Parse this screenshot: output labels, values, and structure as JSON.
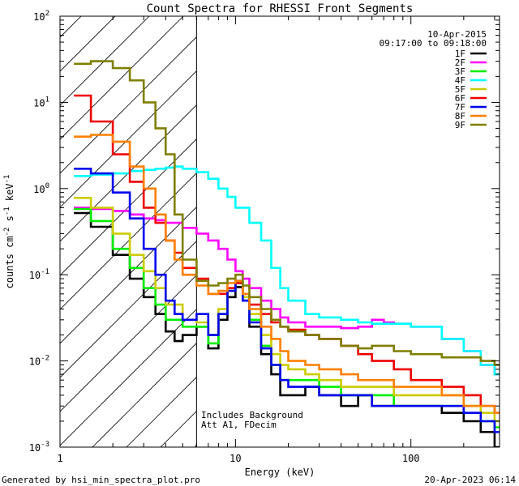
{
  "chart_data": {
    "type": "line",
    "title": "Count Spectra for RHESSI Front Segments",
    "xlabel": "Energy (keV)",
    "ylabel_parts": [
      "counts cm",
      "-2",
      " s",
      "-1",
      " keV",
      "-1"
    ],
    "xscale": "log",
    "yscale": "log",
    "xlim": [
      1,
      320
    ],
    "ylim": [
      0.001,
      100
    ],
    "x_ticks": [
      {
        "value": 1,
        "label": "1"
      },
      {
        "value": 10,
        "label": "10"
      },
      {
        "value": 100,
        "label": "100"
      }
    ],
    "y_ticks": [
      {
        "value": 0.001,
        "base": "10",
        "exp": "-3"
      },
      {
        "value": 0.01,
        "base": "10",
        "exp": "-2"
      },
      {
        "value": 0.1,
        "base": "10",
        "exp": "-1"
      },
      {
        "value": 1,
        "base": "10",
        "exp": "0"
      },
      {
        "value": 10,
        "base": "10",
        "exp": "1"
      },
      {
        "value": 100,
        "base": "10",
        "exp": "2"
      }
    ],
    "date": "10-Apr-2015",
    "time_range": "09:17:00 to 09:18:00",
    "shaded_region_xmax": 6,
    "annotations": [
      "Includes Background",
      "Att A1, FDecim"
    ],
    "legend_position": "top-right",
    "series": [
      {
        "name": "1F",
        "color": "#000000",
        "values": [
          [
            1.2,
            0.52
          ],
          [
            1.5,
            0.36
          ],
          [
            2,
            0.17
          ],
          [
            2.5,
            0.09
          ],
          [
            3,
            0.055
          ],
          [
            3.5,
            0.035
          ],
          [
            4,
            0.022
          ],
          [
            4.5,
            0.017
          ],
          [
            5,
            0.02
          ],
          [
            6,
            0.025
          ],
          [
            7,
            0.014
          ],
          [
            8,
            0.03
          ],
          [
            9,
            0.055
          ],
          [
            10,
            0.072
          ],
          [
            11,
            0.05
          ],
          [
            12,
            0.025
          ],
          [
            14,
            0.012
          ],
          [
            16,
            0.007
          ],
          [
            18,
            0.004
          ],
          [
            20,
            0.004
          ],
          [
            25,
            0.005
          ],
          [
            30,
            0.004
          ],
          [
            40,
            0.003
          ],
          [
            50,
            0.004
          ],
          [
            60,
            0.003
          ],
          [
            80,
            0.003
          ],
          [
            100,
            0.003
          ],
          [
            150,
            0.0025
          ],
          [
            200,
            0.002
          ],
          [
            250,
            0.0015
          ],
          [
            300,
            0.001
          ]
        ]
      },
      {
        "name": "2F",
        "color": "#ff00ff",
        "values": [
          [
            1.2,
            0.6
          ],
          [
            1.5,
            0.58
          ],
          [
            2,
            0.55
          ],
          [
            2.5,
            0.5
          ],
          [
            3,
            0.45
          ],
          [
            3.5,
            0.43
          ],
          [
            4,
            0.4
          ],
          [
            5,
            0.35
          ],
          [
            6,
            0.3
          ],
          [
            7,
            0.25
          ],
          [
            8,
            0.2
          ],
          [
            9,
            0.15
          ],
          [
            10,
            0.11
          ],
          [
            11,
            0.09
          ],
          [
            12,
            0.07
          ],
          [
            14,
            0.05
          ],
          [
            16,
            0.04
          ],
          [
            18,
            0.032
          ],
          [
            20,
            0.028
          ],
          [
            25,
            0.025
          ],
          [
            30,
            0.025
          ],
          [
            40,
            0.024
          ],
          [
            50,
            0.025
          ],
          [
            60,
            0.03
          ],
          [
            70,
            0.028
          ],
          [
            80,
            0.027
          ],
          [
            100,
            0.025
          ],
          [
            150,
            0.018
          ],
          [
            200,
            0.013
          ],
          [
            250,
            0.009
          ],
          [
            300,
            0.007
          ]
        ]
      },
      {
        "name": "3F",
        "color": "#00ee00",
        "values": [
          [
            1.2,
            0.58
          ],
          [
            1.5,
            0.42
          ],
          [
            2,
            0.2
          ],
          [
            2.5,
            0.12
          ],
          [
            3,
            0.07
          ],
          [
            3.5,
            0.045
          ],
          [
            4,
            0.03
          ],
          [
            5,
            0.025
          ],
          [
            6,
            0.025
          ],
          [
            7,
            0.016
          ],
          [
            8,
            0.035
          ],
          [
            9,
            0.065
          ],
          [
            10,
            0.08
          ],
          [
            11,
            0.05
          ],
          [
            12,
            0.03
          ],
          [
            14,
            0.015
          ],
          [
            16,
            0.009
          ],
          [
            18,
            0.006
          ],
          [
            20,
            0.006
          ],
          [
            25,
            0.006
          ],
          [
            30,
            0.005
          ],
          [
            40,
            0.004
          ],
          [
            50,
            0.004
          ],
          [
            60,
            0.004
          ],
          [
            80,
            0.003
          ],
          [
            100,
            0.003
          ],
          [
            150,
            0.003
          ],
          [
            200,
            0.003
          ],
          [
            250,
            0.002
          ],
          [
            300,
            0.0017
          ]
        ]
      },
      {
        "name": "4F",
        "color": "#00ffff",
        "values": [
          [
            1.2,
            1.4
          ],
          [
            1.5,
            1.45
          ],
          [
            2,
            1.5
          ],
          [
            2.5,
            1.6
          ],
          [
            3,
            1.65
          ],
          [
            3.5,
            1.7
          ],
          [
            4,
            1.75
          ],
          [
            4.5,
            1.8
          ],
          [
            5,
            1.7
          ],
          [
            6,
            1.55
          ],
          [
            7,
            1.3
          ],
          [
            8,
            1.0
          ],
          [
            9,
            0.8
          ],
          [
            10,
            0.6
          ],
          [
            12,
            0.4
          ],
          [
            14,
            0.25
          ],
          [
            16,
            0.12
          ],
          [
            18,
            0.07
          ],
          [
            20,
            0.05
          ],
          [
            25,
            0.035
          ],
          [
            30,
            0.032
          ],
          [
            40,
            0.03
          ],
          [
            50,
            0.028
          ],
          [
            60,
            0.027
          ],
          [
            80,
            0.027
          ],
          [
            100,
            0.025
          ],
          [
            150,
            0.018
          ],
          [
            200,
            0.013
          ],
          [
            250,
            0.009
          ],
          [
            300,
            0.007
          ]
        ]
      },
      {
        "name": "5F",
        "color": "#cccc00",
        "values": [
          [
            1.2,
            0.78
          ],
          [
            1.5,
            0.6
          ],
          [
            2,
            0.3
          ],
          [
            2.5,
            0.17
          ],
          [
            3,
            0.11
          ],
          [
            3.5,
            0.07
          ],
          [
            4,
            0.045
          ],
          [
            5,
            0.03
          ],
          [
            6,
            0.028
          ],
          [
            7,
            0.02
          ],
          [
            8,
            0.04
          ],
          [
            9,
            0.07
          ],
          [
            10,
            0.08
          ],
          [
            11,
            0.055
          ],
          [
            12,
            0.035
          ],
          [
            14,
            0.02
          ],
          [
            16,
            0.012
          ],
          [
            18,
            0.009
          ],
          [
            20,
            0.008
          ],
          [
            25,
            0.007
          ],
          [
            30,
            0.006
          ],
          [
            40,
            0.005
          ],
          [
            50,
            0.005
          ],
          [
            60,
            0.005
          ],
          [
            80,
            0.004
          ],
          [
            100,
            0.004
          ],
          [
            150,
            0.004
          ],
          [
            200,
            0.003
          ],
          [
            250,
            0.0025
          ],
          [
            300,
            0.002
          ]
        ]
      },
      {
        "name": "6F",
        "color": "#ee0000",
        "values": [
          [
            1.2,
            12
          ],
          [
            1.5,
            6
          ],
          [
            2,
            2.5
          ],
          [
            2.5,
            1.2
          ],
          [
            3,
            0.6
          ],
          [
            3.5,
            0.4
          ],
          [
            4,
            0.25
          ],
          [
            4.5,
            0.18
          ],
          [
            5,
            0.12
          ],
          [
            6,
            0.09
          ],
          [
            7,
            0.06
          ],
          [
            8,
            0.06
          ],
          [
            9,
            0.07
          ],
          [
            10,
            0.08
          ],
          [
            11,
            0.06
          ],
          [
            12,
            0.045
          ],
          [
            14,
            0.035
          ],
          [
            16,
            0.028
          ],
          [
            18,
            0.025
          ],
          [
            20,
            0.023
          ],
          [
            25,
            0.02
          ],
          [
            30,
            0.018
          ],
          [
            40,
            0.015
          ],
          [
            50,
            0.012
          ],
          [
            60,
            0.01
          ],
          [
            80,
            0.008
          ],
          [
            100,
            0.006
          ],
          [
            150,
            0.005
          ],
          [
            200,
            0.004
          ],
          [
            250,
            0.003
          ],
          [
            300,
            0.0025
          ]
        ]
      },
      {
        "name": "7F",
        "color": "#0000ee",
        "values": [
          [
            1.2,
            1.7
          ],
          [
            1.5,
            1.5
          ],
          [
            2,
            0.9
          ],
          [
            2.5,
            0.45
          ],
          [
            3,
            0.2
          ],
          [
            3.5,
            0.1
          ],
          [
            4,
            0.05
          ],
          [
            4.5,
            0.035
          ],
          [
            5,
            0.03
          ],
          [
            6,
            0.035
          ],
          [
            7,
            0.02
          ],
          [
            8,
            0.035
          ],
          [
            9,
            0.065
          ],
          [
            10,
            0.085
          ],
          [
            11,
            0.05
          ],
          [
            12,
            0.028
          ],
          [
            14,
            0.014
          ],
          [
            16,
            0.009
          ],
          [
            18,
            0.006
          ],
          [
            20,
            0.005
          ],
          [
            25,
            0.005
          ],
          [
            30,
            0.004
          ],
          [
            40,
            0.004
          ],
          [
            50,
            0.004
          ],
          [
            60,
            0.003
          ],
          [
            80,
            0.003
          ],
          [
            100,
            0.003
          ],
          [
            150,
            0.003
          ],
          [
            200,
            0.0025
          ],
          [
            250,
            0.002
          ],
          [
            300,
            0.0015
          ]
        ]
      },
      {
        "name": "8F",
        "color": "#ff7f00",
        "values": [
          [
            1.2,
            4
          ],
          [
            1.5,
            4.2
          ],
          [
            2,
            3.5
          ],
          [
            2.5,
            1.8
          ],
          [
            3,
            1.0
          ],
          [
            3.5,
            0.5
          ],
          [
            4,
            0.25
          ],
          [
            4.5,
            0.15
          ],
          [
            5,
            0.1
          ],
          [
            6,
            0.075
          ],
          [
            7,
            0.06
          ],
          [
            8,
            0.065
          ],
          [
            9,
            0.08
          ],
          [
            10,
            0.085
          ],
          [
            11,
            0.06
          ],
          [
            12,
            0.04
          ],
          [
            14,
            0.025
          ],
          [
            16,
            0.018
          ],
          [
            18,
            0.013
          ],
          [
            20,
            0.01
          ],
          [
            25,
            0.009
          ],
          [
            30,
            0.008
          ],
          [
            40,
            0.007
          ],
          [
            50,
            0.006
          ],
          [
            60,
            0.006
          ],
          [
            80,
            0.005
          ],
          [
            100,
            0.005
          ],
          [
            150,
            0.004
          ],
          [
            200,
            0.003
          ],
          [
            250,
            0.003
          ],
          [
            300,
            0.0025
          ]
        ]
      },
      {
        "name": "9F",
        "color": "#7f7f00",
        "values": [
          [
            1.2,
            28
          ],
          [
            1.5,
            30
          ],
          [
            2,
            25
          ],
          [
            2.5,
            18
          ],
          [
            3,
            10
          ],
          [
            3.5,
            5
          ],
          [
            4,
            2.5
          ],
          [
            4.5,
            0.5
          ],
          [
            5,
            0.15
          ],
          [
            6,
            0.085
          ],
          [
            7,
            0.075
          ],
          [
            8,
            0.08
          ],
          [
            9,
            0.09
          ],
          [
            10,
            0.1
          ],
          [
            11,
            0.075
          ],
          [
            12,
            0.055
          ],
          [
            14,
            0.04
          ],
          [
            16,
            0.03
          ],
          [
            18,
            0.025
          ],
          [
            20,
            0.022
          ],
          [
            25,
            0.02
          ],
          [
            30,
            0.018
          ],
          [
            40,
            0.015
          ],
          [
            50,
            0.014
          ],
          [
            60,
            0.015
          ],
          [
            80,
            0.013
          ],
          [
            100,
            0.012
          ],
          [
            150,
            0.011
          ],
          [
            200,
            0.011
          ],
          [
            250,
            0.01
          ],
          [
            300,
            0.009
          ]
        ]
      }
    ]
  },
  "footer": {
    "generator": "Generated by hsi_min_spectra_plot.pro",
    "timestamp": "20-Apr-2023 06:14"
  }
}
